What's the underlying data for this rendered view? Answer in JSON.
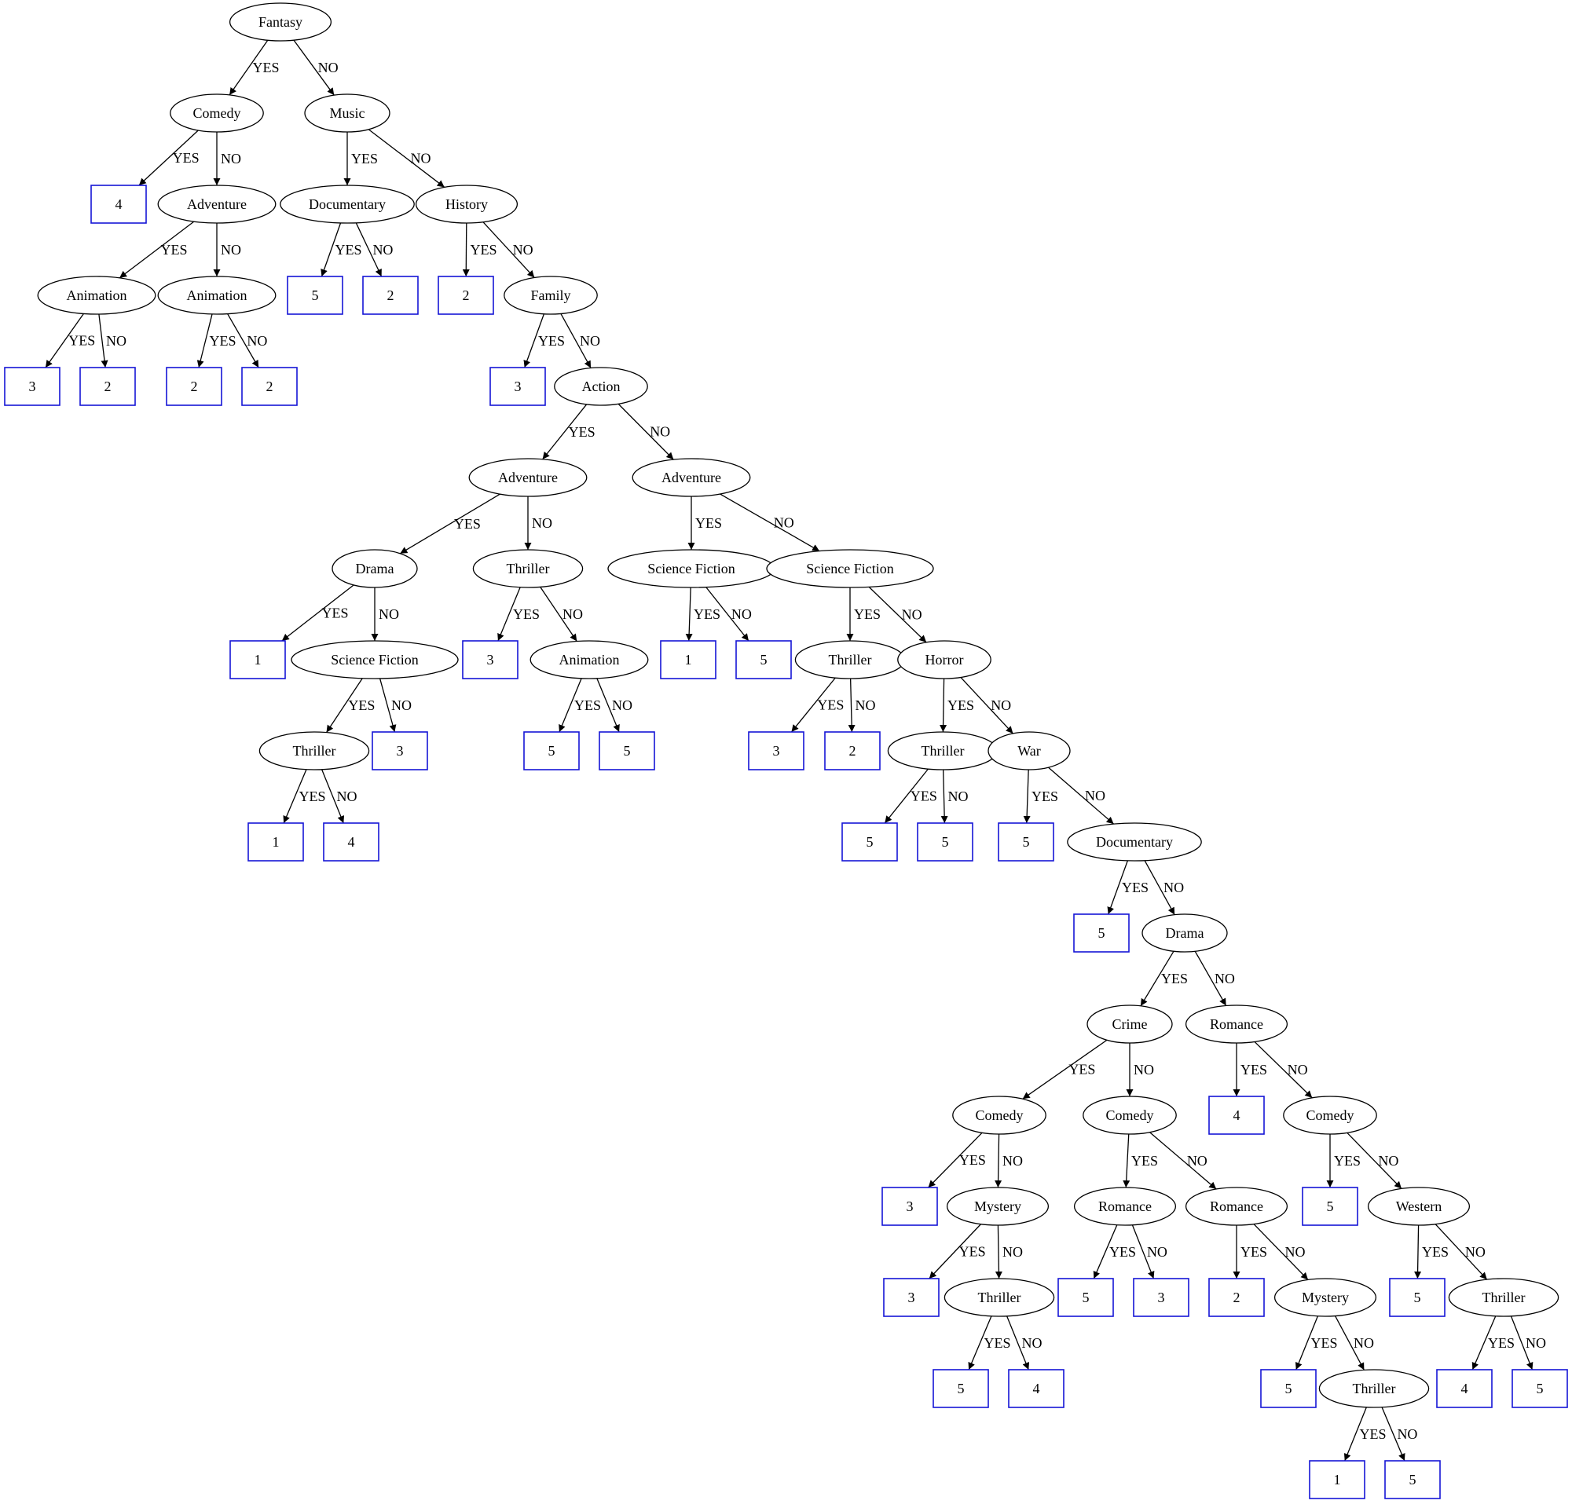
{
  "diagram": {
    "type": "decision-tree",
    "colors": {
      "decision_border": "#000000",
      "leaf_border": "#1515d6",
      "edge": "#000000",
      "background": "#ffffff"
    },
    "nodes": [
      {
        "id": "n1",
        "kind": "decision",
        "label": "Fantasy"
      },
      {
        "id": "n2",
        "kind": "decision",
        "label": "Comedy"
      },
      {
        "id": "n3",
        "kind": "decision",
        "label": "Music"
      },
      {
        "id": "n4",
        "kind": "leaf",
        "label": "4"
      },
      {
        "id": "n5",
        "kind": "decision",
        "label": "Adventure"
      },
      {
        "id": "n6",
        "kind": "decision",
        "label": "Documentary"
      },
      {
        "id": "n7",
        "kind": "decision",
        "label": "History"
      },
      {
        "id": "n8",
        "kind": "decision",
        "label": "Animation"
      },
      {
        "id": "n9",
        "kind": "decision",
        "label": "Animation"
      },
      {
        "id": "n10",
        "kind": "leaf",
        "label": "5"
      },
      {
        "id": "n11",
        "kind": "leaf",
        "label": "2"
      },
      {
        "id": "n12",
        "kind": "leaf",
        "label": "2"
      },
      {
        "id": "n13",
        "kind": "decision",
        "label": "Family"
      },
      {
        "id": "n14",
        "kind": "leaf",
        "label": "3"
      },
      {
        "id": "n15",
        "kind": "leaf",
        "label": "2"
      },
      {
        "id": "n16",
        "kind": "leaf",
        "label": "2"
      },
      {
        "id": "n17",
        "kind": "leaf",
        "label": "2"
      },
      {
        "id": "n18",
        "kind": "leaf",
        "label": "3"
      },
      {
        "id": "n19",
        "kind": "decision",
        "label": "Action"
      },
      {
        "id": "n20",
        "kind": "decision",
        "label": "Adventure"
      },
      {
        "id": "n21",
        "kind": "decision",
        "label": "Adventure"
      },
      {
        "id": "n22",
        "kind": "decision",
        "label": "Drama"
      },
      {
        "id": "n23",
        "kind": "decision",
        "label": "Thriller"
      },
      {
        "id": "n24",
        "kind": "decision",
        "label": "Science Fiction"
      },
      {
        "id": "n25",
        "kind": "decision",
        "label": "Science Fiction"
      },
      {
        "id": "n26",
        "kind": "leaf",
        "label": "1"
      },
      {
        "id": "n27",
        "kind": "decision",
        "label": "Science Fiction"
      },
      {
        "id": "n28",
        "kind": "leaf",
        "label": "3"
      },
      {
        "id": "n29",
        "kind": "decision",
        "label": "Animation"
      },
      {
        "id": "n30",
        "kind": "leaf",
        "label": "1"
      },
      {
        "id": "n31",
        "kind": "leaf",
        "label": "5"
      },
      {
        "id": "n32",
        "kind": "decision",
        "label": "Thriller"
      },
      {
        "id": "n33",
        "kind": "decision",
        "label": "Horror"
      },
      {
        "id": "n34",
        "kind": "decision",
        "label": "Thriller"
      },
      {
        "id": "n35",
        "kind": "leaf",
        "label": "3"
      },
      {
        "id": "n36",
        "kind": "leaf",
        "label": "5"
      },
      {
        "id": "n37",
        "kind": "leaf",
        "label": "5"
      },
      {
        "id": "n38",
        "kind": "leaf",
        "label": "3"
      },
      {
        "id": "n39",
        "kind": "leaf",
        "label": "2"
      },
      {
        "id": "n40",
        "kind": "decision",
        "label": "Thriller"
      },
      {
        "id": "n41",
        "kind": "decision",
        "label": "War"
      },
      {
        "id": "n42",
        "kind": "leaf",
        "label": "1"
      },
      {
        "id": "n43",
        "kind": "leaf",
        "label": "4"
      },
      {
        "id": "n44",
        "kind": "leaf",
        "label": "5"
      },
      {
        "id": "n45",
        "kind": "leaf",
        "label": "5"
      },
      {
        "id": "n46",
        "kind": "leaf",
        "label": "5"
      },
      {
        "id": "n47",
        "kind": "decision",
        "label": "Documentary"
      },
      {
        "id": "n48",
        "kind": "leaf",
        "label": "5"
      },
      {
        "id": "n49",
        "kind": "decision",
        "label": "Drama"
      },
      {
        "id": "n50",
        "kind": "decision",
        "label": "Crime"
      },
      {
        "id": "n51",
        "kind": "decision",
        "label": "Romance"
      },
      {
        "id": "n52",
        "kind": "decision",
        "label": "Comedy"
      },
      {
        "id": "n53",
        "kind": "decision",
        "label": "Comedy"
      },
      {
        "id": "n54",
        "kind": "leaf",
        "label": "4"
      },
      {
        "id": "n55",
        "kind": "decision",
        "label": "Comedy"
      },
      {
        "id": "n56",
        "kind": "leaf",
        "label": "3"
      },
      {
        "id": "n57",
        "kind": "decision",
        "label": "Mystery"
      },
      {
        "id": "n58",
        "kind": "decision",
        "label": "Romance"
      },
      {
        "id": "n59",
        "kind": "decision",
        "label": "Romance"
      },
      {
        "id": "n60",
        "kind": "leaf",
        "label": "5"
      },
      {
        "id": "n61",
        "kind": "decision",
        "label": "Western"
      },
      {
        "id": "n62",
        "kind": "leaf",
        "label": "3"
      },
      {
        "id": "n63",
        "kind": "decision",
        "label": "Thriller"
      },
      {
        "id": "n64",
        "kind": "leaf",
        "label": "5"
      },
      {
        "id": "n65",
        "kind": "leaf",
        "label": "3"
      },
      {
        "id": "n66",
        "kind": "leaf",
        "label": "2"
      },
      {
        "id": "n67",
        "kind": "decision",
        "label": "Mystery"
      },
      {
        "id": "n68",
        "kind": "leaf",
        "label": "5"
      },
      {
        "id": "n69",
        "kind": "decision",
        "label": "Thriller"
      },
      {
        "id": "n70",
        "kind": "leaf",
        "label": "5"
      },
      {
        "id": "n71",
        "kind": "leaf",
        "label": "4"
      },
      {
        "id": "n72",
        "kind": "leaf",
        "label": "5"
      },
      {
        "id": "n73",
        "kind": "decision",
        "label": "Thriller"
      },
      {
        "id": "n74",
        "kind": "leaf",
        "label": "4"
      },
      {
        "id": "n75",
        "kind": "leaf",
        "label": "5"
      },
      {
        "id": "n76",
        "kind": "leaf",
        "label": "1"
      },
      {
        "id": "n77",
        "kind": "leaf",
        "label": "5"
      }
    ],
    "edges": [
      {
        "from": "n1",
        "to": "n2",
        "label": "YES"
      },
      {
        "from": "n1",
        "to": "n3",
        "label": "NO"
      },
      {
        "from": "n2",
        "to": "n4",
        "label": "YES"
      },
      {
        "from": "n2",
        "to": "n5",
        "label": "NO"
      },
      {
        "from": "n3",
        "to": "n6",
        "label": "YES"
      },
      {
        "from": "n3",
        "to": "n7",
        "label": "NO"
      },
      {
        "from": "n5",
        "to": "n8",
        "label": "YES"
      },
      {
        "from": "n5",
        "to": "n9",
        "label": "NO"
      },
      {
        "from": "n6",
        "to": "n10",
        "label": "YES"
      },
      {
        "from": "n6",
        "to": "n11",
        "label": "NO"
      },
      {
        "from": "n7",
        "to": "n12",
        "label": "YES"
      },
      {
        "from": "n7",
        "to": "n13",
        "label": "NO"
      },
      {
        "from": "n8",
        "to": "n14",
        "label": "YES"
      },
      {
        "from": "n8",
        "to": "n15",
        "label": "NO"
      },
      {
        "from": "n9",
        "to": "n16",
        "label": "YES"
      },
      {
        "from": "n9",
        "to": "n17",
        "label": "NO"
      },
      {
        "from": "n13",
        "to": "n18",
        "label": "YES"
      },
      {
        "from": "n13",
        "to": "n19",
        "label": "NO"
      },
      {
        "from": "n19",
        "to": "n20",
        "label": "YES"
      },
      {
        "from": "n19",
        "to": "n21",
        "label": "NO"
      },
      {
        "from": "n20",
        "to": "n22",
        "label": "YES"
      },
      {
        "from": "n20",
        "to": "n23",
        "label": "NO"
      },
      {
        "from": "n21",
        "to": "n24",
        "label": "YES"
      },
      {
        "from": "n21",
        "to": "n25",
        "label": "NO"
      },
      {
        "from": "n22",
        "to": "n26",
        "label": "YES"
      },
      {
        "from": "n22",
        "to": "n27",
        "label": "NO"
      },
      {
        "from": "n23",
        "to": "n28",
        "label": "YES"
      },
      {
        "from": "n23",
        "to": "n29",
        "label": "NO"
      },
      {
        "from": "n24",
        "to": "n30",
        "label": "YES"
      },
      {
        "from": "n24",
        "to": "n31",
        "label": "NO"
      },
      {
        "from": "n25",
        "to": "n32",
        "label": "YES"
      },
      {
        "from": "n25",
        "to": "n33",
        "label": "NO"
      },
      {
        "from": "n27",
        "to": "n34",
        "label": "YES"
      },
      {
        "from": "n27",
        "to": "n35",
        "label": "NO"
      },
      {
        "from": "n29",
        "to": "n36",
        "label": "YES"
      },
      {
        "from": "n29",
        "to": "n37",
        "label": "NO"
      },
      {
        "from": "n32",
        "to": "n38",
        "label": "YES"
      },
      {
        "from": "n32",
        "to": "n39",
        "label": "NO"
      },
      {
        "from": "n33",
        "to": "n40",
        "label": "YES"
      },
      {
        "from": "n33",
        "to": "n41",
        "label": "NO"
      },
      {
        "from": "n34",
        "to": "n42",
        "label": "YES"
      },
      {
        "from": "n34",
        "to": "n43",
        "label": "NO"
      },
      {
        "from": "n40",
        "to": "n44",
        "label": "YES"
      },
      {
        "from": "n40",
        "to": "n45",
        "label": "NO"
      },
      {
        "from": "n41",
        "to": "n46",
        "label": "YES"
      },
      {
        "from": "n41",
        "to": "n47",
        "label": "NO"
      },
      {
        "from": "n47",
        "to": "n48",
        "label": "YES"
      },
      {
        "from": "n47",
        "to": "n49",
        "label": "NO"
      },
      {
        "from": "n49",
        "to": "n50",
        "label": "YES"
      },
      {
        "from": "n49",
        "to": "n51",
        "label": "NO"
      },
      {
        "from": "n50",
        "to": "n52",
        "label": "YES"
      },
      {
        "from": "n50",
        "to": "n53",
        "label": "NO"
      },
      {
        "from": "n51",
        "to": "n54",
        "label": "YES"
      },
      {
        "from": "n51",
        "to": "n55",
        "label": "NO"
      },
      {
        "from": "n52",
        "to": "n56",
        "label": "YES"
      },
      {
        "from": "n52",
        "to": "n57",
        "label": "NO"
      },
      {
        "from": "n53",
        "to": "n58",
        "label": "YES"
      },
      {
        "from": "n53",
        "to": "n59",
        "label": "NO"
      },
      {
        "from": "n55",
        "to": "n60",
        "label": "YES"
      },
      {
        "from": "n55",
        "to": "n61",
        "label": "NO"
      },
      {
        "from": "n57",
        "to": "n62",
        "label": "YES"
      },
      {
        "from": "n57",
        "to": "n63",
        "label": "NO"
      },
      {
        "from": "n58",
        "to": "n64",
        "label": "YES"
      },
      {
        "from": "n58",
        "to": "n65",
        "label": "NO"
      },
      {
        "from": "n59",
        "to": "n66",
        "label": "YES"
      },
      {
        "from": "n59",
        "to": "n67",
        "label": "NO"
      },
      {
        "from": "n61",
        "to": "n72",
        "label": "YES"
      },
      {
        "from": "n61",
        "to": "n73",
        "label": "NO"
      },
      {
        "from": "n63",
        "to": "n70",
        "label": "YES"
      },
      {
        "from": "n63",
        "to": "n71",
        "label": "NO"
      },
      {
        "from": "n67",
        "to": "n68",
        "label": "YES"
      },
      {
        "from": "n67",
        "to": "n69",
        "label": "NO"
      },
      {
        "from": "n69",
        "to": "n76",
        "label": "YES"
      },
      {
        "from": "n69",
        "to": "n77",
        "label": "NO"
      },
      {
        "from": "n73",
        "to": "n74",
        "label": "YES"
      },
      {
        "from": "n73",
        "to": "n75",
        "label": "NO"
      }
    ]
  }
}
